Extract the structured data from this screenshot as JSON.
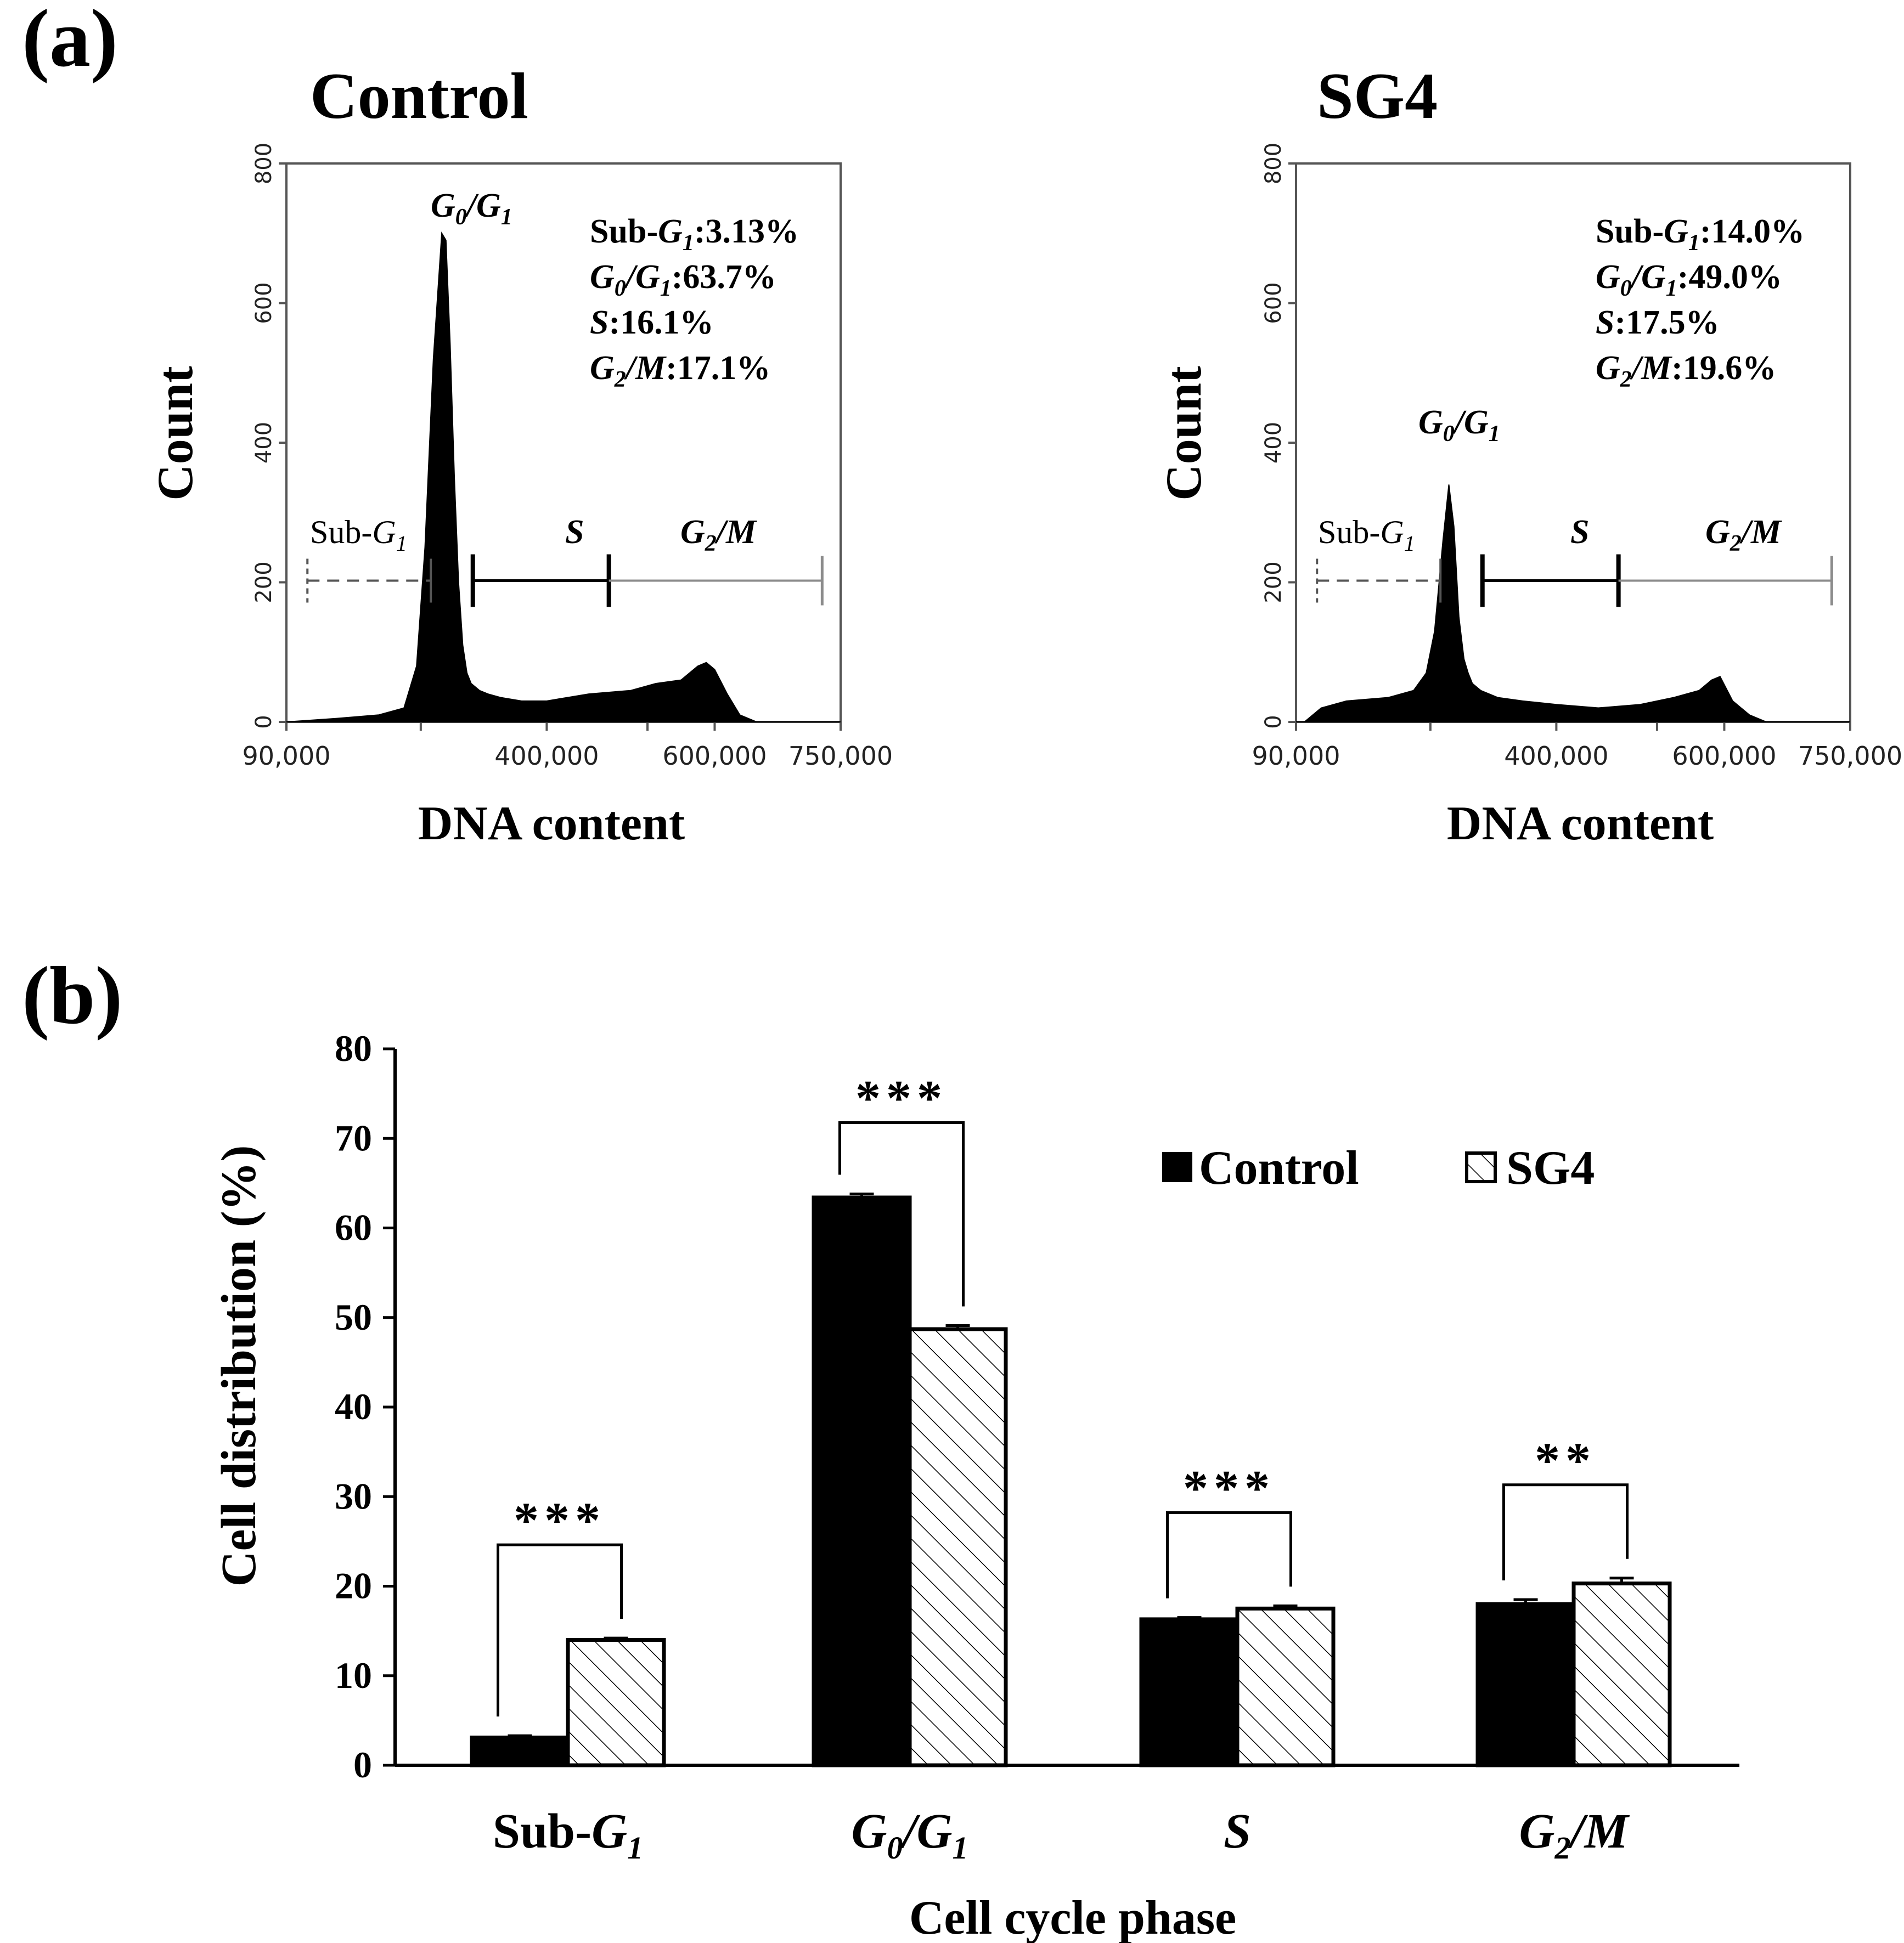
{
  "colors": {
    "ink": "#000000",
    "gate_gray": "#8c8c8c",
    "background": "#ffffff"
  },
  "panel_a": {
    "label": "(a)",
    "plots": [
      {
        "title": "Control",
        "ylabel": "Count",
        "xlabel": "DNA content",
        "yticks": [
          "0",
          "200",
          "400",
          "600",
          "800"
        ],
        "xticks": [
          "90,000",
          "400,000",
          "600,000",
          "750,000"
        ],
        "peak_label_main": "G",
        "peak_label_sub0": "0",
        "peak_label_sep": "/G",
        "peak_label_sub1": "1",
        "gates": {
          "subg1": "Sub-",
          "subg1_g": "G",
          "subg1_sub": "1",
          "s": "S",
          "g2m_g": "G",
          "g2m_sub": "2",
          "g2m_rest": "/M"
        },
        "stats": {
          "subg1_value": ":3.13%",
          "g0g1_value": ":63.7%",
          "s_value": ":16.1%",
          "g2m_value": ":17.1%"
        }
      },
      {
        "title": "SG4",
        "ylabel": "Count",
        "xlabel": "DNA content",
        "yticks": [
          "0",
          "200",
          "400",
          "600",
          "800"
        ],
        "xticks": [
          "90,000",
          "400,000",
          "600,000",
          "750,000"
        ],
        "peak_label_main": "G",
        "peak_label_sub0": "0",
        "peak_label_sep": "/G",
        "peak_label_sub1": "1",
        "gates": {
          "subg1": "Sub-",
          "subg1_g": "G",
          "subg1_sub": "1",
          "s": "S",
          "g2m_g": "G",
          "g2m_sub": "2",
          "g2m_rest": "/M"
        },
        "stats": {
          "subg1_value": ":14.0%",
          "g0g1_value": ":49.0%",
          "s_value": ":17.5%",
          "g2m_value": ":19.6%"
        }
      }
    ]
  },
  "chart_data": [
    {
      "type": "area",
      "title": "Control",
      "xlabel": "DNA content",
      "ylabel": "Count",
      "xlim": [
        90000,
        750000
      ],
      "ylim": [
        0,
        800
      ],
      "x": [
        90000,
        150000,
        200000,
        230000,
        245000,
        255000,
        265000,
        275000,
        280000,
        285000,
        290000,
        295000,
        300000,
        305000,
        310000,
        320000,
        330000,
        345000,
        370000,
        400000,
        450000,
        500000,
        530000,
        560000,
        580000,
        590000,
        600000,
        615000,
        630000,
        650000,
        750000
      ],
      "values": [
        0,
        5,
        10,
        20,
        80,
        250,
        520,
        700,
        690,
        540,
        350,
        200,
        110,
        70,
        55,
        45,
        40,
        35,
        30,
        30,
        40,
        45,
        55,
        60,
        80,
        85,
        75,
        40,
        10,
        0,
        0
      ],
      "regions": [
        {
          "name": "Sub-G1",
          "from": 115000,
          "to": 262000
        },
        {
          "name": "S",
          "from": 312000,
          "to": 474000
        },
        {
          "name": "G2/M",
          "from": 474000,
          "to": 728000
        }
      ],
      "annotations": [
        "Sub-G1:3.13%",
        "G0/G1:63.7%",
        "S:16.1%",
        "G2/M:17.1%"
      ]
    },
    {
      "type": "area",
      "title": "SG4",
      "xlabel": "DNA content",
      "ylabel": "Count",
      "xlim": [
        90000,
        750000
      ],
      "ylim": [
        0,
        800
      ],
      "x": [
        90000,
        100000,
        120000,
        150000,
        200000,
        230000,
        245000,
        255000,
        265000,
        272000,
        278000,
        284000,
        290000,
        295000,
        300000,
        310000,
        330000,
        360000,
        400000,
        450000,
        500000,
        540000,
        570000,
        585000,
        595000,
        610000,
        630000,
        650000,
        750000
      ],
      "values": [
        0,
        0,
        20,
        30,
        35,
        45,
        70,
        130,
        260,
        340,
        280,
        150,
        90,
        70,
        55,
        45,
        35,
        30,
        25,
        20,
        25,
        35,
        45,
        60,
        65,
        30,
        10,
        0,
        0
      ],
      "regions": [
        {
          "name": "Sub-G1",
          "from": 115000,
          "to": 262000
        },
        {
          "name": "S",
          "from": 312000,
          "to": 474000
        },
        {
          "name": "G2/M",
          "from": 474000,
          "to": 728000
        }
      ],
      "annotations": [
        "Sub-G1:14.0%",
        "G0/G1:49.0%",
        "S:17.5%",
        "G2/M:19.6%"
      ]
    },
    {
      "type": "bar",
      "label": "(b)",
      "title": "",
      "xlabel": "Cell cycle phase",
      "ylabel": "Cell distribution (%)",
      "ylim": [
        0,
        80
      ],
      "yticks": [
        "0",
        "10",
        "20",
        "30",
        "40",
        "50",
        "60",
        "70",
        "80"
      ],
      "categories": [
        {
          "main": "Sub-",
          "g": "G",
          "sub": "1",
          "rest": ""
        },
        {
          "main": "",
          "g": "G",
          "sub": "0",
          "rest": "/G",
          "sub2": "1"
        },
        {
          "main": "",
          "g": "S",
          "sub": "",
          "rest": ""
        },
        {
          "main": "",
          "g": "G",
          "sub": "2",
          "rest": "/M"
        }
      ],
      "series": [
        {
          "name": "Control",
          "values": [
            3.1,
            63.4,
            16.3,
            18.0
          ],
          "errors": [
            0.2,
            0.4,
            0.2,
            0.5
          ]
        },
        {
          "name": "SG4",
          "values": [
            14.0,
            48.7,
            17.5,
            20.3
          ],
          "errors": [
            0.2,
            0.4,
            0.3,
            0.6
          ]
        }
      ],
      "significance": [
        "***",
        "***",
        "***",
        "**"
      ],
      "legend_position": "top-right"
    }
  ]
}
